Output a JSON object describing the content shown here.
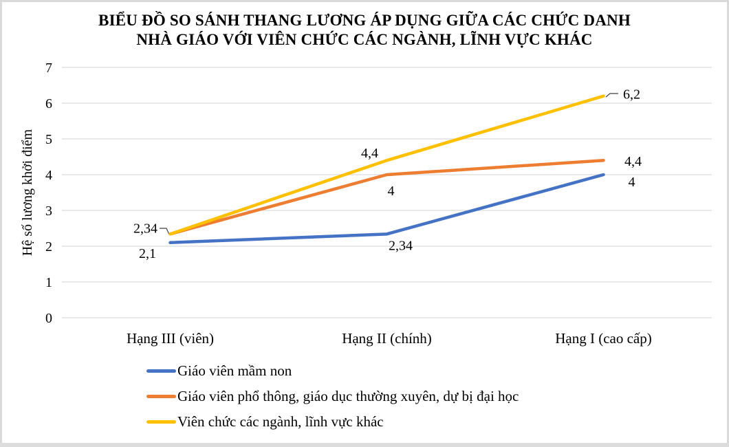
{
  "window": {
    "border_color": "#d9d9d9",
    "background": "#ffffff"
  },
  "chart_data": {
    "type": "line",
    "title": "BIỂU ĐỒ SO SÁNH THANG LƯƠNG ÁP DỤNG GIỮA CÁC CHỨC DANH NHÀ GIÁO VỚI VIÊN CHỨC CÁC NGÀNH, LĨNH VỰC KHÁC",
    "title_lines": [
      "BIỂU ĐỒ SO SÁNH THANG LƯƠNG ÁP DỤNG GIỮA CÁC CHỨC DANH",
      "NHÀ GIÁO VỚI VIÊN CHỨC CÁC NGÀNH, LĨNH VỰC KHÁC"
    ],
    "xlabel": "",
    "ylabel": "Hệ số lương khởi điểm",
    "ylim": [
      0,
      7
    ],
    "yticks": [
      0,
      1,
      2,
      3,
      4,
      5,
      6,
      7
    ],
    "grid": "horizontal",
    "gridline_color": "#d9d9d9",
    "legend_position": "bottom-left",
    "decimal_separator": ",",
    "categories": [
      "Hạng III (viên)",
      "Hạng II (chính)",
      "Hạng I (cao cấp)"
    ],
    "series": [
      {
        "name": "Giáo viên mầm non",
        "color": "#4472C4",
        "values": [
          2.1,
          2.34,
          4
        ],
        "point_labels": [
          "2,1",
          "2,34",
          "4"
        ]
      },
      {
        "name": "Giáo viên phổ thông, giáo dục thường xuyên, dự bị đại học",
        "color": "#ED7D31",
        "values": [
          2.34,
          4,
          4.4
        ],
        "point_labels": [
          "2,34",
          "4",
          "4,4"
        ]
      },
      {
        "name": "Viên chức các ngành, lĩnh vực khác",
        "color": "#FFC000",
        "values": [
          2.34,
          4.4,
          6.2
        ],
        "point_labels": [
          null,
          "4,4",
          "6,2"
        ]
      }
    ]
  }
}
